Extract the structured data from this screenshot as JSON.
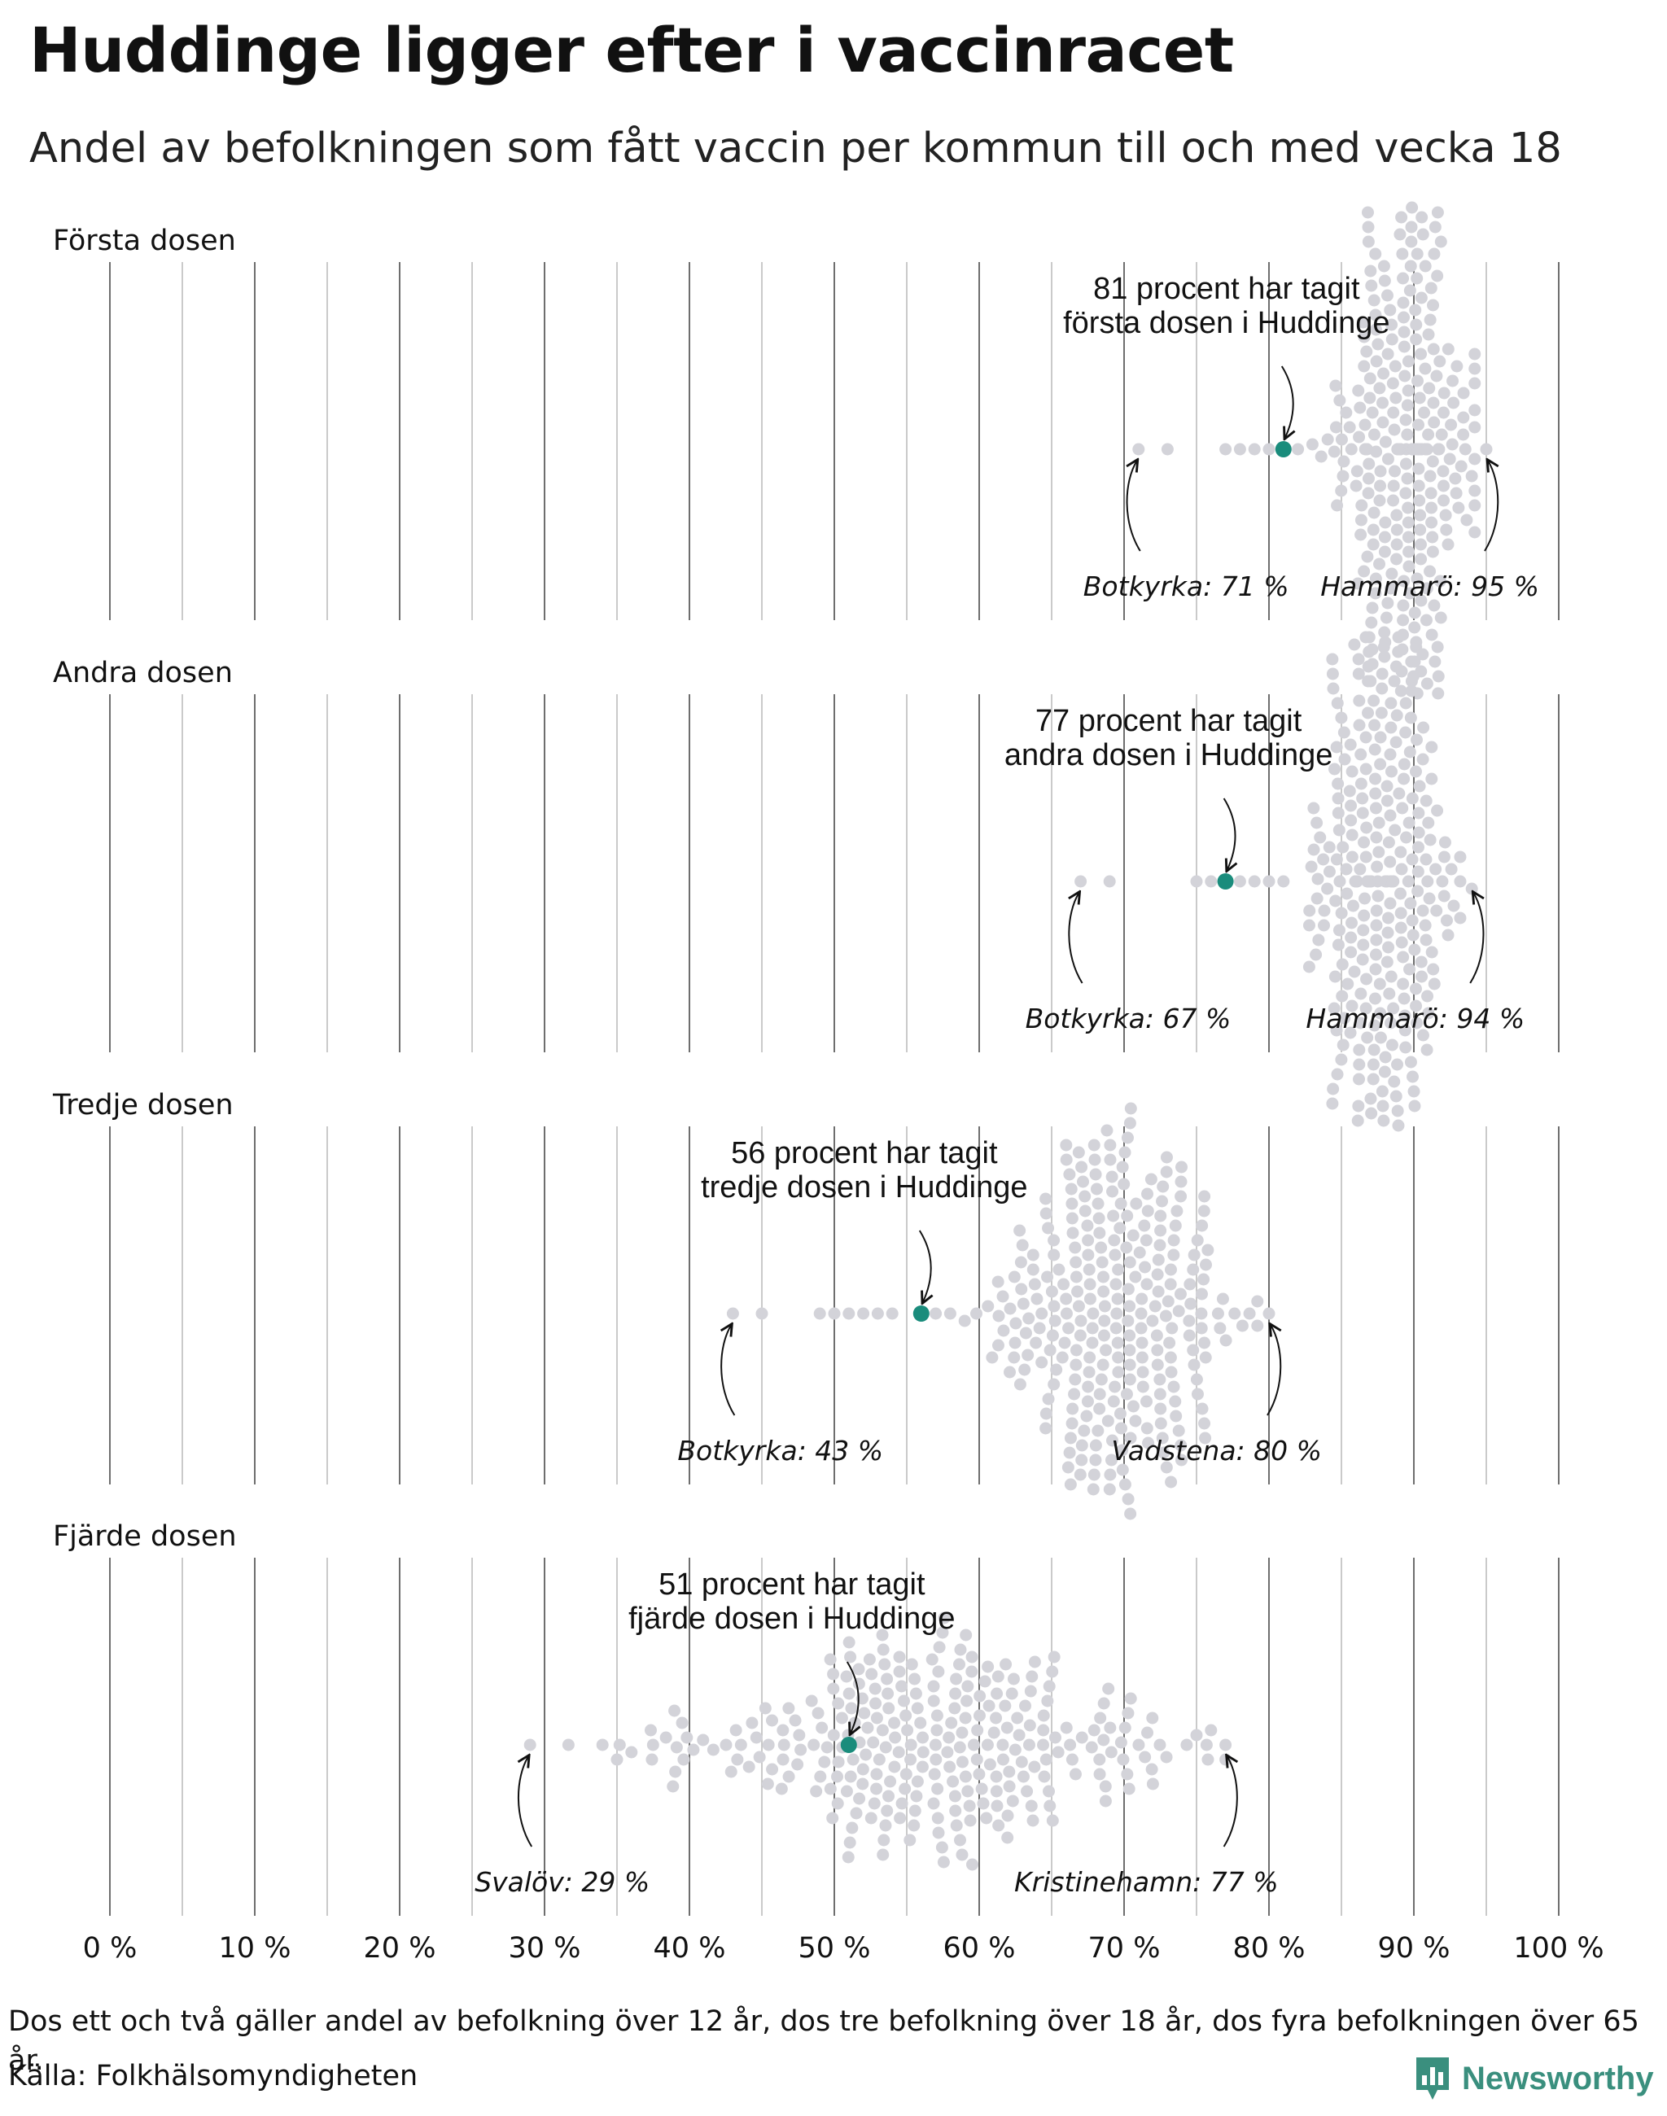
{
  "title": "Huddinge ligger efter i vaccinracet",
  "subtitle": "Andel av befolkningen som fått vaccin per kommun till och med vecka 18",
  "footnote": "Dos ett och två gäller andel av befolkning över 12 år, dos tre befolkning över 18 år, dos fyra befolkningen över 65 år.",
  "source": "Källa: Folkhälsomyndigheten",
  "brand": "Newsworthy",
  "colors": {
    "highlight": "#1a8c7c",
    "dots": "#d3d3d9",
    "gridline": "#7a7a7a",
    "text": "#111111",
    "brand": "#3a8f7e"
  },
  "chart_data": {
    "type": "beeswarm",
    "x_ticks": [
      "0 %",
      "10 %",
      "20 %",
      "30 %",
      "40 %",
      "50 %",
      "60 %",
      "70 %",
      "80 %",
      "90 %",
      "100 %"
    ],
    "xlim": [
      0,
      100
    ],
    "unit": "%",
    "panels": [
      {
        "label": "Första dosen",
        "highlight": {
          "name": "Huddinge",
          "value": 81,
          "label_lines": [
            "81 procent har tagit",
            "första dosen i Huddinge"
          ]
        },
        "min": {
          "name": "Botkyrka",
          "value": 71,
          "label": "Botkyrka: 71 %"
        },
        "max": {
          "name": "Hammarö",
          "value": 95,
          "label": "Hammarö: 95 %"
        },
        "distribution": {
          "count": 290,
          "center": 89.5,
          "spread": 2.3,
          "outliers": [
            71,
            73,
            77,
            78,
            79,
            80,
            82,
            83
          ]
        }
      },
      {
        "label": "Andra dosen",
        "highlight": {
          "name": "Huddinge",
          "value": 77,
          "label_lines": [
            "77 procent har tagit",
            "andra dosen i Huddinge"
          ]
        },
        "min": {
          "name": "Botkyrka",
          "value": 67,
          "label": "Botkyrka: 67 %"
        },
        "max": {
          "name": "Hammarö",
          "value": 94,
          "label": "Hammarö: 94 %"
        },
        "distribution": {
          "count": 290,
          "center": 87.5,
          "spread": 2.5,
          "outliers": [
            67,
            69,
            75,
            76,
            78,
            79,
            80,
            81
          ]
        }
      },
      {
        "label": "Tredje dosen",
        "highlight": {
          "name": "Huddinge",
          "value": 56,
          "label_lines": [
            "56 procent har tagit",
            "tredje dosen i Huddinge"
          ]
        },
        "min": {
          "name": "Botkyrka",
          "value": 43,
          "label": "Botkyrka: 43 %"
        },
        "max": {
          "name": "Vadstena",
          "value": 80,
          "label": "Vadstena: 80 %"
        },
        "distribution": {
          "count": 290,
          "center": 69.5,
          "spread": 3.8,
          "outliers": [
            43,
            45,
            49,
            50,
            51,
            52,
            53,
            54,
            57,
            58,
            59
          ]
        }
      },
      {
        "label": "Fjärde dosen",
        "highlight": {
          "name": "Huddinge",
          "value": 51,
          "label_lines": [
            "51 procent har tagit",
            "fjärde dosen i Huddinge"
          ]
        },
        "min": {
          "name": "Svalöv",
          "value": 29,
          "label": "Svalöv: 29 %"
        },
        "max": {
          "name": "Kristinehamn",
          "value": 77,
          "label": "Kristinehamn: 77 %"
        },
        "distribution": {
          "count": 290,
          "center": 57,
          "spread": 8,
          "outliers": [
            29,
            34,
            35,
            36,
            75,
            76,
            77
          ]
        }
      }
    ]
  }
}
